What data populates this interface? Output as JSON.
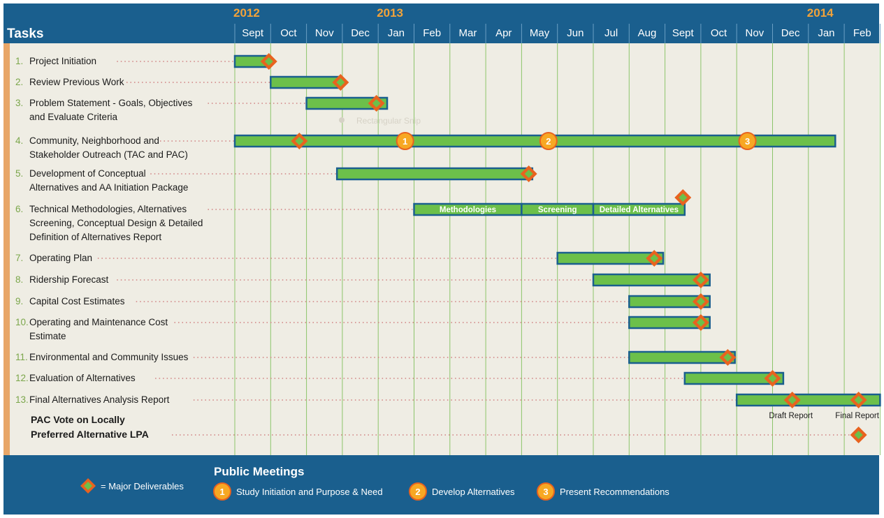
{
  "chart_data": {
    "type": "gantt",
    "header": "Tasks",
    "years": [
      {
        "label": "2012",
        "month_index": 0
      },
      {
        "label": "2013",
        "month_index": 4
      },
      {
        "label": "2014",
        "month_index": 16
      }
    ],
    "months": [
      "Sept",
      "Oct",
      "Nov",
      "Dec",
      "Jan",
      "Feb",
      "Mar",
      "Apr",
      "May",
      "Jun",
      "Jul",
      "Aug",
      "Sept",
      "Oct",
      "Nov",
      "Dec",
      "Jan",
      "Feb"
    ],
    "tasks": [
      {
        "num": "1.",
        "lines": [
          "Project Initiation"
        ],
        "bars": [
          {
            "start": 0,
            "end": 0.95
          }
        ],
        "milestones": [
          0.95
        ]
      },
      {
        "num": "2.",
        "lines": [
          "Review Previous Work"
        ],
        "bars": [
          {
            "start": 1,
            "end": 2.95
          }
        ],
        "milestones": [
          2.95
        ]
      },
      {
        "num": "3.",
        "lines": [
          "Problem Statement - Goals, Objectives",
          "and Evaluate Criteria"
        ],
        "bars": [
          {
            "start": 2,
            "end": 4.25
          }
        ],
        "milestones": [
          3.95
        ]
      },
      {
        "num": "4.",
        "lines": [
          "Community, Neighborhood and",
          "Stakeholder Outreach (TAC and PAC)"
        ],
        "bars": [
          {
            "start": 0,
            "end": 16.75
          }
        ],
        "milestones": [
          1.8
        ],
        "meetings": [
          {
            "at": 4.75,
            "label": "1"
          },
          {
            "at": 8.75,
            "label": "2"
          },
          {
            "at": 14.3,
            "label": "3"
          }
        ]
      },
      {
        "num": "5.",
        "lines": [
          "Development of Conceptual",
          "Alternatives and AA Initiation Package"
        ],
        "bars": [
          {
            "start": 2.85,
            "end": 8.3
          }
        ],
        "milestones": [
          8.2
        ]
      },
      {
        "num": "6.",
        "lines": [
          "Technical Methodologies, Alternatives",
          "Screening, Conceptual Design & Detailed",
          "Definition of Alternatives Report"
        ],
        "bars": [
          {
            "start": 5,
            "end": 8,
            "label": "Methodologies"
          },
          {
            "start": 8,
            "end": 10,
            "label": "Screening"
          },
          {
            "start": 10,
            "end": 12.55,
            "label": "Detailed Alternatives"
          }
        ],
        "milestones": [
          12.5
        ]
      },
      {
        "num": "7.",
        "lines": [
          "Operating Plan"
        ],
        "bars": [
          {
            "start": 9,
            "end": 11.95
          }
        ],
        "milestones": [
          11.7
        ]
      },
      {
        "num": "8.",
        "lines": [
          "Ridership Forecast"
        ],
        "bars": [
          {
            "start": 10,
            "end": 13.25
          }
        ],
        "milestones": [
          13
        ]
      },
      {
        "num": "9.",
        "lines": [
          "Capital Cost Estimates"
        ],
        "bars": [
          {
            "start": 11,
            "end": 13.25
          }
        ],
        "milestones": [
          13
        ]
      },
      {
        "num": "10.",
        "lines": [
          "Operating and Maintenance Cost",
          "Estimate"
        ],
        "bars": [
          {
            "start": 11,
            "end": 13.25
          }
        ],
        "milestones": [
          13
        ]
      },
      {
        "num": "11.",
        "lines": [
          "Environmental and Community Issues"
        ],
        "bars": [
          {
            "start": 11,
            "end": 13.95
          }
        ],
        "milestones": [
          13.75
        ]
      },
      {
        "num": "12.",
        "lines": [
          "Evaluation of Alternatives"
        ],
        "bars": [
          {
            "start": 12.55,
            "end": 15.3
          }
        ],
        "milestones": [
          15
        ]
      },
      {
        "num": "13.",
        "lines": [
          "Final Alternatives Analysis Report"
        ],
        "bars": [
          {
            "start": 14,
            "end": 18
          }
        ],
        "milestones": [
          15.55,
          17.4
        ],
        "milestone_labels": [
          "Draft Report",
          "Final Report"
        ]
      },
      {
        "num": "",
        "lines": [
          "PAC Vote on Locally",
          "Preferred Alternative LPA"
        ],
        "bold": true,
        "bars": [],
        "milestones": [
          17.4
        ]
      }
    ],
    "overlay_text": "Rectangular Snip",
    "legend": {
      "deliverable": "= Major Deliverables",
      "title": "Public Meetings",
      "meetings": [
        {
          "num": "1",
          "label": "Study Initiation and Purpose & Need"
        },
        {
          "num": "2",
          "label": "Develop Alternatives"
        },
        {
          "num": "3",
          "label": "Present Recommendations"
        }
      ]
    },
    "colors": {
      "header": "#1a5f8e",
      "background": "#efede4",
      "left_strip": "#e8a668",
      "bar_fill": "#6cc04a",
      "bar_border": "#1a5f8e",
      "grid_line": "#8cc56a",
      "leader_dots": "#d08080",
      "milestone_outer": "#e8631f",
      "milestone_inner": "#6cc04a",
      "meeting_fill": "#f7a823",
      "meeting_border": "#e8631f",
      "year_text": "#f2a33a"
    }
  }
}
